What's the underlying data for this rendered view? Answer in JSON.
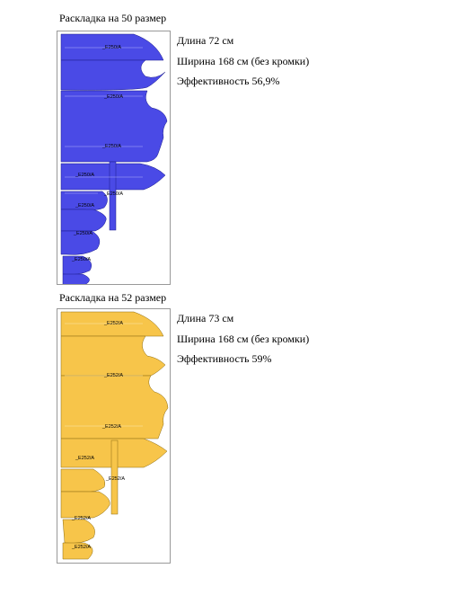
{
  "layout50": {
    "heading": "Раскладка на 50 размер",
    "length": "Длина 72 см",
    "width": "Ширина 168 см (без кромки)",
    "efficiency": "Эффективность 56,9%",
    "fill_color": "#4a4ae6",
    "piece_labels": [
      "_E250/A",
      "_E250/A",
      "_E250/A",
      "_E250/A",
      "_E250/A",
      "_E250/A",
      "_E250/A",
      "_E250/A"
    ]
  },
  "layout52": {
    "heading": "Раскладка на 52 размер",
    "length": "Длина 73 см",
    "width": "Ширина 168 см (без кромки)",
    "efficiency": "Эффективность 59%",
    "fill_color": "#f7c54a",
    "piece_labels": [
      "_E252/A",
      "_E252/A",
      "_E252/A",
      "_E252/A",
      "_E252/A",
      "_E252/A",
      "_E252/A"
    ]
  }
}
